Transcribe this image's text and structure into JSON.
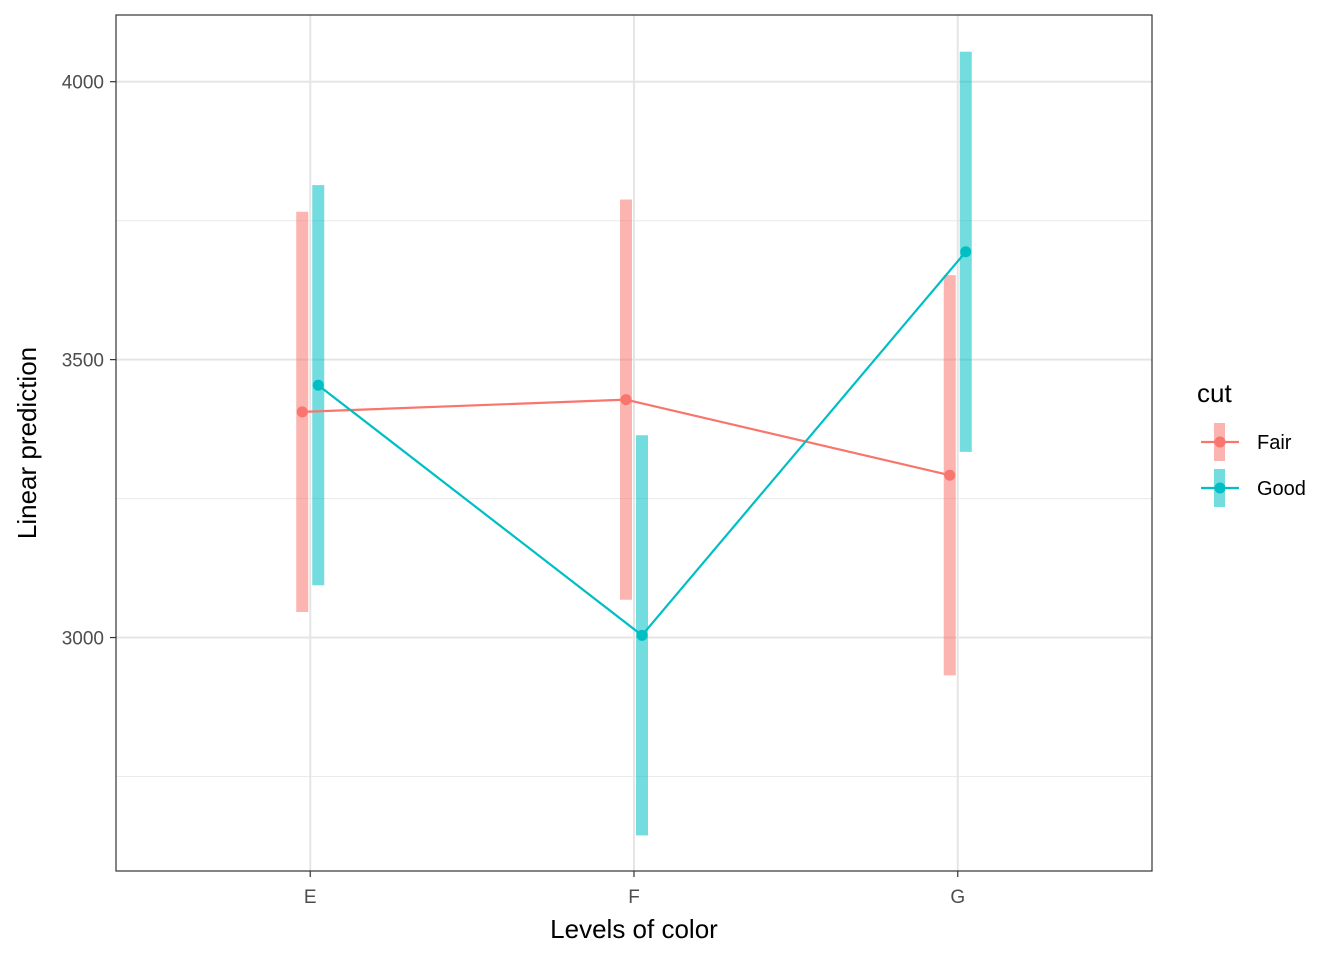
{
  "chart_data": {
    "type": "line",
    "title": "",
    "xlabel": "Levels of color",
    "ylabel": "Linear prediction",
    "categories": [
      "E",
      "F",
      "G"
    ],
    "ylim": [
      2580,
      4120
    ],
    "yticks": [
      3000,
      3500,
      4000
    ],
    "grid": true,
    "legend": {
      "title": "cut",
      "placement": "right"
    },
    "series": [
      {
        "name": "Fair",
        "color": "#F8766D",
        "values": [
          3406,
          3428,
          3292
        ],
        "lower": [
          3046,
          3068,
          2932
        ],
        "upper": [
          3766,
          3788,
          3652
        ]
      },
      {
        "name": "Good",
        "color": "#00BFC4",
        "values": [
          3454,
          3004,
          3694
        ],
        "lower": [
          3094,
          2644,
          3334
        ],
        "upper": [
          3814,
          3364,
          4054
        ]
      }
    ]
  }
}
